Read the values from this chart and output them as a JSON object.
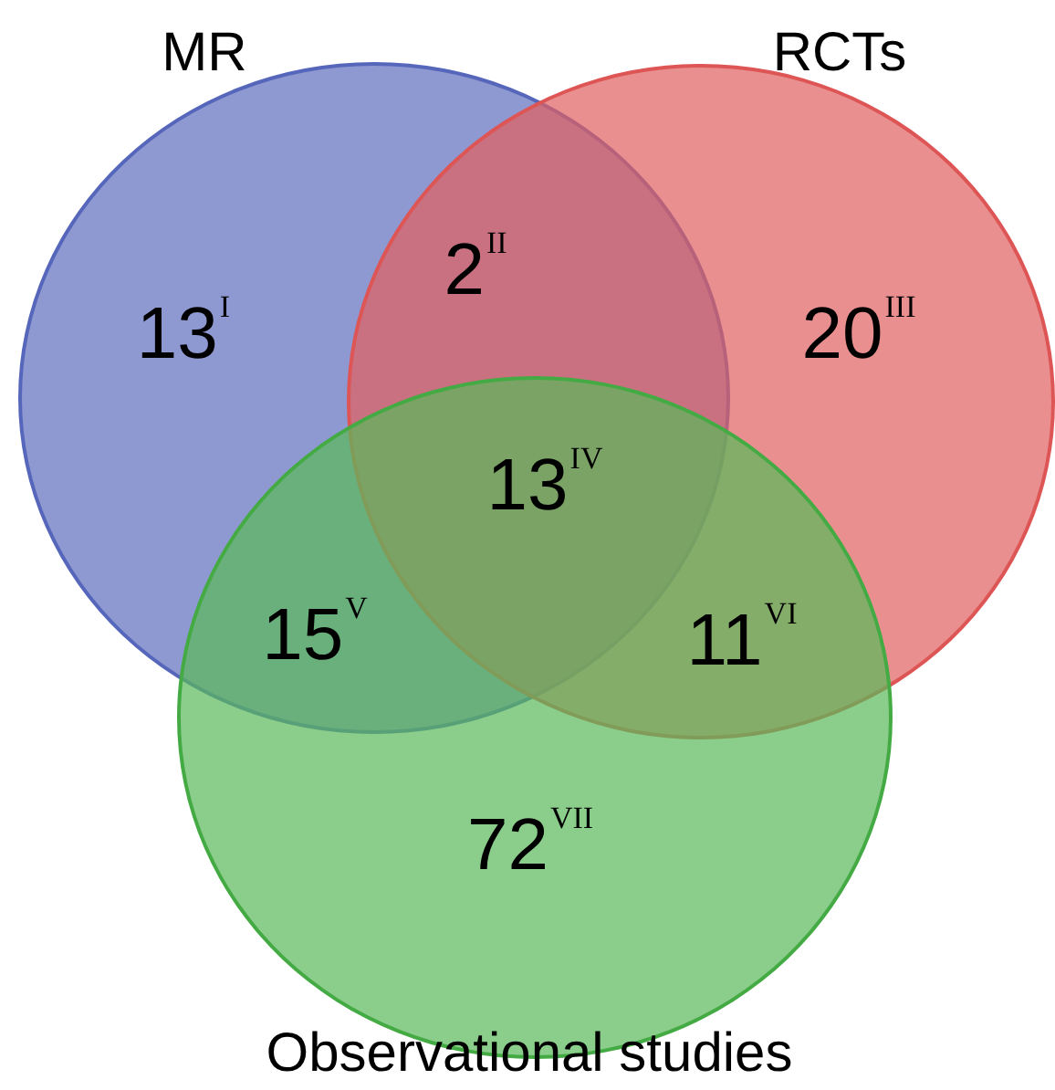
{
  "chart_data": {
    "type": "other",
    "categories": [
      "I",
      "II",
      "III",
      "IV",
      "V",
      "VI",
      "VII"
    ],
    "values": [
      13,
      2,
      20,
      13,
      15,
      11,
      72
    ],
    "data_labels": true,
    "annotations": [
      "MR",
      "RCTs",
      "Observational studies"
    ]
  }
}
